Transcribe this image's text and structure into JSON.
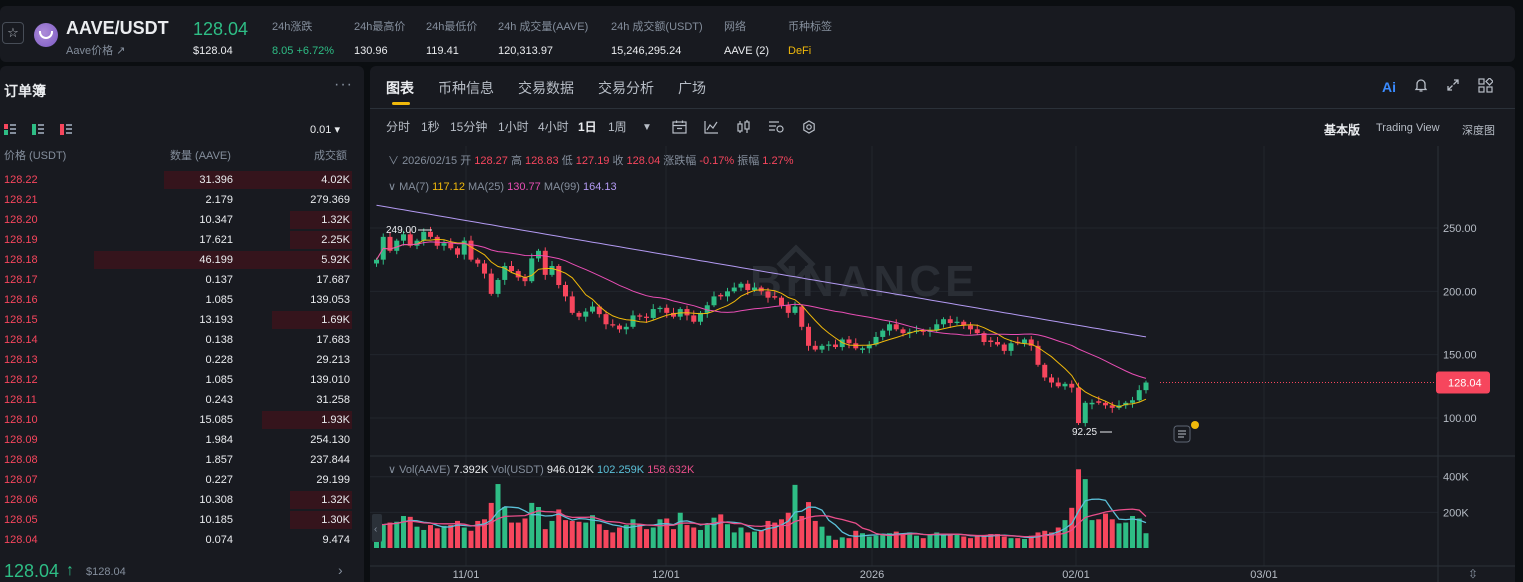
{
  "header": {
    "pair": "AAVE/USDT",
    "sub": "Aave价格 ↗",
    "last_price": "128.04",
    "last_price_usd": "$128.04",
    "stats": [
      {
        "label": "24h涨跌",
        "value": "8.05 +6.72%",
        "color": "#2ebd85"
      },
      {
        "label": "24h最高价",
        "value": "130.96",
        "color": "#eaecef"
      },
      {
        "label": "24h最低价",
        "value": "119.41",
        "color": "#eaecef"
      },
      {
        "label": "24h 成交量(AAVE)",
        "value": "120,313.97",
        "color": "#eaecef"
      },
      {
        "label": "24h 成交额(USDT)",
        "value": "15,246,295.24",
        "color": "#eaecef"
      },
      {
        "label": "网络",
        "value": "AAVE (2)",
        "color": "#eaecef"
      },
      {
        "label": "币种标签",
        "value": "DeFi",
        "color": "#f0b90b"
      }
    ]
  },
  "orderbook": {
    "title": "订单簿",
    "more": "···",
    "tick_size": "0.01 ▾",
    "headers": {
      "price": "价格 (USDT)",
      "qty": "数量 (AAVE)",
      "total": "成交额"
    },
    "asks": [
      {
        "price": "128.22",
        "qty": "31.396",
        "total": "4.02K",
        "depth": 0.73
      },
      {
        "price": "128.21",
        "qty": "2.179",
        "total": "279.369",
        "depth": 0
      },
      {
        "price": "128.20",
        "qty": "10.347",
        "total": "1.32K",
        "depth": 0.24
      },
      {
        "price": "128.19",
        "qty": "17.621",
        "total": "2.25K",
        "depth": 0.24
      },
      {
        "price": "128.18",
        "qty": "46.199",
        "total": "5.92K",
        "depth": 1.0
      },
      {
        "price": "128.17",
        "qty": "0.137",
        "total": "17.687",
        "depth": 0
      },
      {
        "price": "128.16",
        "qty": "1.085",
        "total": "139.053",
        "depth": 0
      },
      {
        "price": "128.15",
        "qty": "13.193",
        "total": "1.69K",
        "depth": 0.31
      },
      {
        "price": "128.14",
        "qty": "0.138",
        "total": "17.683",
        "depth": 0
      },
      {
        "price": "128.13",
        "qty": "0.228",
        "total": "29.213",
        "depth": 0
      },
      {
        "price": "128.12",
        "qty": "1.085",
        "total": "139.010",
        "depth": 0
      },
      {
        "price": "128.11",
        "qty": "0.243",
        "total": "31.258",
        "depth": 0
      },
      {
        "price": "128.10",
        "qty": "15.085",
        "total": "1.93K",
        "depth": 0.35
      },
      {
        "price": "128.09",
        "qty": "1.984",
        "total": "254.130",
        "depth": 0
      },
      {
        "price": "128.08",
        "qty": "1.857",
        "total": "237.844",
        "depth": 0
      },
      {
        "price": "128.07",
        "qty": "0.227",
        "total": "29.199",
        "depth": 0
      },
      {
        "price": "128.06",
        "qty": "10.308",
        "total": "1.32K",
        "depth": 0.24
      },
      {
        "price": "128.05",
        "qty": "10.185",
        "total": "1.30K",
        "depth": 0.24
      },
      {
        "price": "128.04",
        "qty": "0.074",
        "total": "9.474",
        "depth": 0
      }
    ],
    "mid_price": "128.04",
    "mid_arrow": "↑",
    "mid_usd": "$128.04"
  },
  "chart_panel": {
    "tabs": [
      "图表",
      "币种信息",
      "交易数据",
      "交易分析",
      "广场"
    ],
    "active_tab": 0,
    "intervals": [
      "分时",
      "1秒",
      "15分钟",
      "1小时",
      "4小时",
      "1日",
      "1周"
    ],
    "active_interval": 5,
    "views": [
      "基本版",
      "Trading View",
      "深度图"
    ],
    "active_view": 0,
    "ai_label": "Ai",
    "colors": {
      "up": "#2ebd85",
      "down": "#f6465d",
      "ma7": "#f0b90b",
      "ma25": "#e94eb5",
      "ma99": "#b39af2",
      "vol_ma5": "#5bc0d8",
      "vol_ma10": "#e94e8a"
    }
  },
  "chart_legend": {
    "date": "2026/02/15",
    "open_label": "开",
    "open": "128.27",
    "high_label": "高",
    "high": "128.83",
    "low_label": "低",
    "low": "127.19",
    "close_label": "收",
    "close": "128.04",
    "chg_label": "涨跌幅",
    "chg": "-0.17%",
    "amp_label": "振幅",
    "amp": "1.27%",
    "ma7_label": "MA(7)",
    "ma7": "117.12",
    "ma25_label": "MA(25)",
    "ma25": "130.77",
    "ma99_label": "MA(99)",
    "ma99": "164.13",
    "vol_label": "Vol(AAVE)",
    "vol": "7.392K",
    "volusdt_label": "Vol(USDT)",
    "volusdt": "946.012K",
    "vol_ma1": "102.259K",
    "vol_ma2": "158.632K",
    "max_marker": "249.00",
    "min_marker": "92.25",
    "current_price_tag": "128.04",
    "watermark": "BINANCE"
  },
  "chart_data": {
    "type": "candlestick",
    "price_axis": {
      "ticks": [
        "250.00",
        "200.00",
        "150.00",
        "100.00"
      ],
      "tick_values": [
        250,
        200,
        150,
        100
      ]
    },
    "volume_axis": {
      "ticks": [
        "400K",
        "200K"
      ],
      "tick_values": [
        400000,
        200000
      ]
    },
    "time_axis": {
      "ticks": [
        "11/01",
        "12/01",
        "2026",
        "02/01",
        "03/01"
      ]
    },
    "price_path": [
      225,
      243,
      232,
      240,
      245,
      236,
      240,
      247,
      243,
      236,
      238,
      234,
      229,
      240,
      225,
      222,
      214,
      198,
      209,
      220,
      216,
      211,
      208,
      226,
      232,
      213,
      220,
      205,
      196,
      183,
      180,
      184,
      188,
      182,
      174,
      173,
      170,
      172,
      181,
      180,
      179,
      186,
      187,
      183,
      180,
      186,
      181,
      176,
      183,
      189,
      196,
      196,
      200,
      203,
      206,
      201,
      203,
      200,
      195,
      195,
      189,
      183,
      188,
      172,
      157,
      154,
      157,
      158,
      156,
      162,
      159,
      155,
      155,
      158,
      164,
      169,
      174,
      170,
      167,
      168,
      169,
      168,
      169,
      174,
      178,
      175,
      176,
      173,
      170,
      167,
      160,
      160,
      158,
      153,
      159,
      159,
      162,
      157,
      142,
      132,
      128,
      125,
      127,
      124,
      96,
      112,
      112,
      112,
      110,
      108,
      110,
      112,
      114,
      122,
      128
    ],
    "vol_path": [
      0.29,
      0.28,
      0.31,
      0.32,
      0.39,
      0.38,
      0.26,
      0.22,
      0.28,
      0.24,
      0.27,
      0.28,
      0.33,
      0.25,
      0.21,
      0.33,
      0.35,
      0.55,
      0.78,
      0.5,
      0.31,
      0.31,
      0.36,
      0.55,
      0.5,
      0.23,
      0.33,
      0.47,
      0.34,
      0.33,
      0.32,
      0.31,
      0.4,
      0.29,
      0.22,
      0.19,
      0.25,
      0.28,
      0.35,
      0.29,
      0.23,
      0.25,
      0.35,
      0.36,
      0.23,
      0.43,
      0.28,
      0.25,
      0.22,
      0.3,
      0.37,
      0.41,
      0.29,
      0.19,
      0.25,
      0.19,
      0.2,
      0.22,
      0.33,
      0.31,
      0.35,
      0.43,
      0.77,
      0.39,
      0.56,
      0.33,
      0.26,
      0.15,
      0.1,
      0.13,
      0.12,
      0.21,
      0.18,
      0.14,
      0.15,
      0.17,
      0.18,
      0.2,
      0.17,
      0.19,
      0.15,
      0.12,
      0.17,
      0.19,
      0.16,
      0.17,
      0.16,
      0.14,
      0.12,
      0.15,
      0.15,
      0.17,
      0.17,
      0.14,
      0.12,
      0.12,
      0.11,
      0.15,
      0.19,
      0.21,
      0.19,
      0.25,
      0.34,
      0.49,
      0.96,
      0.84,
      0.34,
      0.35,
      0.42,
      0.35,
      0.3,
      0.31,
      0.39,
      0.36,
      0.18
    ]
  }
}
